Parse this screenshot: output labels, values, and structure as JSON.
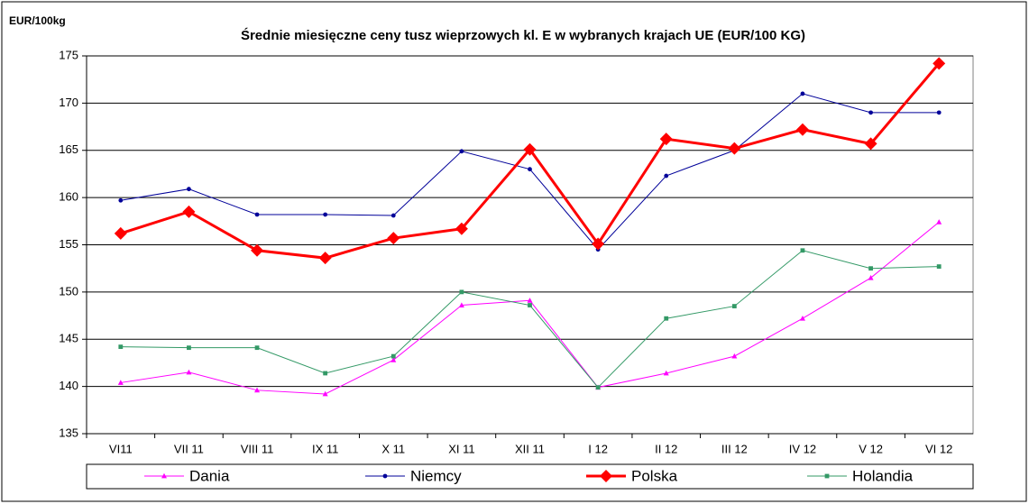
{
  "chart_data": {
    "type": "line",
    "title": "Średnie miesięczne ceny tusz wieprzowych kl. E w wybranych krajach UE (EUR/100 KG)",
    "y_label": "EUR/100kg",
    "categories": [
      "VI11",
      "VII 11",
      "VIII 11",
      "IX 11",
      "X 11",
      "XI 11",
      "XII 11",
      "I 12",
      "II 12",
      "III 12",
      "IV 12",
      "V 12",
      "VI 12"
    ],
    "series": [
      {
        "name": "Dania",
        "color": "#ff00ff",
        "marker": "triangle",
        "values": [
          140.4,
          141.5,
          139.6,
          139.2,
          142.8,
          148.6,
          149.1,
          139.9,
          141.4,
          143.2,
          147.2,
          151.5,
          157.4
        ]
      },
      {
        "name": "Niemcy",
        "color": "#000099",
        "marker": "circle",
        "values": [
          159.7,
          160.9,
          158.2,
          158.2,
          158.1,
          164.9,
          163.0,
          154.5,
          162.3,
          165.0,
          171.0,
          169.0,
          169.0
        ]
      },
      {
        "name": "Polska",
        "color": "#ff0000",
        "marker": "diamond",
        "values": [
          156.2,
          158.5,
          154.4,
          153.6,
          155.7,
          156.7,
          165.1,
          155.1,
          166.2,
          165.2,
          167.2,
          165.7,
          174.2
        ]
      },
      {
        "name": "Holandia",
        "color": "#339966",
        "marker": "square",
        "values": [
          144.2,
          144.1,
          144.1,
          141.4,
          143.2,
          150.0,
          148.6,
          139.9,
          147.2,
          148.5,
          154.4,
          152.5,
          152.7
        ]
      }
    ],
    "ylim": [
      135,
      175
    ],
    "yticks": [
      135,
      140,
      145,
      150,
      155,
      160,
      165,
      170,
      175
    ],
    "grid": true,
    "legend": "bottom"
  }
}
